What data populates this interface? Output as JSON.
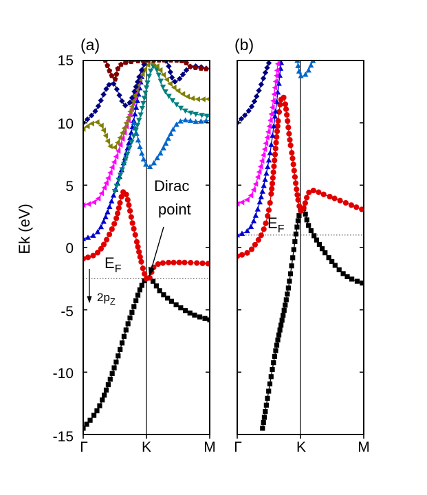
{
  "chart_data": [
    {
      "panel": "(a)",
      "type": "line",
      "ylabel": "Ek (eV)",
      "ylim": [
        -15,
        15
      ],
      "yticks": [
        15,
        10,
        5,
        0,
        -5,
        -10,
        -15
      ],
      "ytick_labels": [
        "15",
        "10",
        "5",
        "0",
        "-5",
        "-10",
        "-15"
      ],
      "xticks": [
        "Γ",
        "K",
        "M"
      ],
      "fermi_level": -2.5,
      "annotations": {
        "dirac_line1": "Dirac",
        "dirac_line2": "point",
        "ef_main": "E",
        "ef_sub": "F",
        "orbital_main": "2p",
        "orbital_sub": "Z"
      },
      "series": [
        {
          "name": "band1",
          "color": "#000000",
          "marker": "square",
          "points": [
            [
              0,
              -14.5
            ],
            [
              0.25,
              -12.8
            ],
            [
              0.5,
              -9.5
            ],
            [
              0.75,
              -5.5
            ],
            [
              1,
              -2.5
            ],
            [
              1.25,
              -3.7
            ],
            [
              1.5,
              -4.7
            ],
            [
              1.75,
              -5.4
            ],
            [
              2,
              -5.8
            ]
          ]
        },
        {
          "name": "band2",
          "color": "#e00000",
          "marker": "circle",
          "points": [
            [
              0,
              -0.9
            ],
            [
              0.25,
              -0.3
            ],
            [
              0.5,
              2.0
            ],
            [
              0.65,
              4.5
            ],
            [
              0.8,
              1.5
            ],
            [
              1,
              -2.5
            ],
            [
              1.15,
              -1.4
            ],
            [
              1.5,
              -1.2
            ],
            [
              2,
              -1.3
            ]
          ]
        },
        {
          "name": "band3",
          "color": "#0000cc",
          "marker": "triangle-up",
          "points": [
            [
              0,
              0.7
            ],
            [
              0.25,
              1.4
            ],
            [
              0.5,
              4.5
            ],
            [
              0.75,
              9.0
            ],
            [
              0.95,
              14.5
            ]
          ]
        },
        {
          "name": "band4",
          "color": "#ff00ff",
          "marker": "triangle-left",
          "points": [
            [
              0,
              3.4
            ],
            [
              0.25,
              4.0
            ],
            [
              0.5,
              7.0
            ],
            [
              0.75,
              10.8
            ],
            [
              0.9,
              14.0
            ]
          ]
        },
        {
          "name": "band5",
          "color": "#0066cc",
          "marker": "triangle-up",
          "points": [
            [
              0.8,
              10.0
            ],
            [
              1,
              6.6
            ],
            [
              1.2,
              7.4
            ],
            [
              1.5,
              10.0
            ],
            [
              1.8,
              10.1
            ],
            [
              2,
              10.2
            ]
          ]
        },
        {
          "name": "band6",
          "color": "#008080",
          "marker": "triangle-down",
          "points": [
            [
              0.5,
              4.5
            ],
            [
              0.7,
              7.5
            ],
            [
              0.9,
              10.5
            ],
            [
              1.1,
              14.5
            ],
            [
              1.3,
              12.5
            ],
            [
              1.6,
              11.0
            ],
            [
              2,
              10.5
            ]
          ]
        },
        {
          "name": "band7",
          "color": "#808000",
          "marker": "triangle-left",
          "points": [
            [
              0,
              9.5
            ],
            [
              0.25,
              10.0
            ],
            [
              0.45,
              8.0
            ],
            [
              0.6,
              9.0
            ],
            [
              0.75,
              11.0
            ],
            [
              0.9,
              13.5
            ],
            [
              1.1,
              14.8
            ],
            [
              1.4,
              13.0
            ],
            [
              1.7,
              12.0
            ],
            [
              2,
              11.9
            ]
          ]
        },
        {
          "name": "band8",
          "color": "#000080",
          "marker": "diamond",
          "points": [
            [
              0,
              10.0
            ],
            [
              0.2,
              11.0
            ],
            [
              0.45,
              13.2
            ],
            [
              0.7,
              11.4
            ],
            [
              1,
              15.0
            ],
            [
              1.3,
              15.0
            ],
            [
              1.45,
              13.3
            ],
            [
              1.7,
              14.5
            ],
            [
              2,
              14.3
            ]
          ]
        },
        {
          "name": "band9",
          "color": "#800000",
          "marker": "pentagon",
          "points": [
            [
              0.35,
              15.0
            ],
            [
              0.5,
              13.5
            ],
            [
              0.65,
              14.8
            ],
            [
              1.5,
              15.0
            ],
            [
              1.7,
              14.5
            ],
            [
              2,
              14.3
            ]
          ]
        }
      ]
    },
    {
      "panel": "(b)",
      "type": "line",
      "ylim": [
        -15,
        15
      ],
      "xticks": [
        "Γ",
        "K",
        "M"
      ],
      "fermi_level": 1.0,
      "annotations": {
        "ef_main": "E",
        "ef_sub": "F"
      },
      "series": [
        {
          "name": "band1",
          "color": "#000000",
          "marker": "square",
          "points": [
            [
              0.4,
              -14.5
            ],
            [
              0.6,
              -8.5
            ],
            [
              0.8,
              -3.5
            ],
            [
              1,
              3.0
            ],
            [
              1.15,
              1.5
            ],
            [
              1.4,
              -0.5
            ],
            [
              1.7,
              -2.2
            ],
            [
              2,
              -2.9
            ]
          ]
        },
        {
          "name": "band2",
          "color": "#e00000",
          "marker": "circle",
          "points": [
            [
              0,
              -0.7
            ],
            [
              0.25,
              0.0
            ],
            [
              0.5,
              3.0
            ],
            [
              0.7,
              12.0
            ],
            [
              0.85,
              8.0
            ],
            [
              1,
              3.0
            ],
            [
              1.15,
              4.5
            ],
            [
              1.4,
              4.2
            ],
            [
              2,
              3.0
            ]
          ]
        },
        {
          "name": "band3",
          "color": "#0000cc",
          "marker": "triangle-up",
          "points": [
            [
              0,
              1.0
            ],
            [
              0.25,
              2.0
            ],
            [
              0.5,
              7.0
            ],
            [
              0.7,
              15.0
            ]
          ]
        },
        {
          "name": "band4",
          "color": "#ff00ff",
          "marker": "triangle-left",
          "points": [
            [
              0,
              3.5
            ],
            [
              0.25,
              4.5
            ],
            [
              0.5,
              9.5
            ],
            [
              0.65,
              15.0
            ]
          ]
        },
        {
          "name": "band8",
          "color": "#000080",
          "marker": "diamond",
          "points": [
            [
              0,
              10.0
            ],
            [
              0.25,
              11.5
            ],
            [
              0.5,
              14.8
            ]
          ]
        },
        {
          "name": "band5",
          "color": "#0066cc",
          "marker": "triangle-up",
          "points": [
            [
              0.95,
              15.0
            ],
            [
              1.0,
              13.8
            ],
            [
              1.1,
              14.0
            ],
            [
              1.2,
              15.0
            ]
          ]
        }
      ]
    }
  ]
}
